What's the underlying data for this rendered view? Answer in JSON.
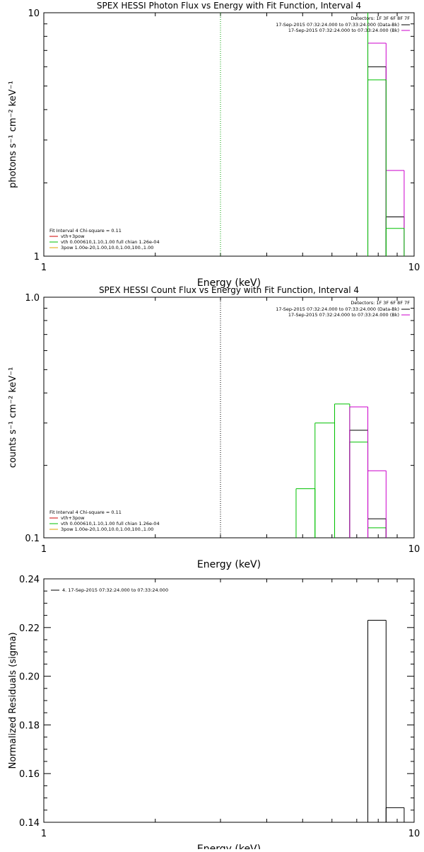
{
  "chart_data": [
    {
      "type": "step",
      "title": "SPEX HESSI Photon Flux vs Energy with Fit Function, Interval 4",
      "xlabel": "Energy (keV)",
      "ylabel": "photons s⁻¹ cm⁻² keV⁻¹",
      "xscale": "log",
      "yscale": "log",
      "xlim": [
        1,
        10
      ],
      "ylim": [
        1,
        10
      ],
      "xticklabels": [
        {
          "value": 1,
          "label": "1"
        },
        {
          "value": 10,
          "label": "10"
        }
      ],
      "yticklabels": [
        {
          "value": 1,
          "label": "1"
        },
        {
          "value": 10,
          "label": "10"
        }
      ],
      "vline": {
        "x": 3,
        "color": "#00a000",
        "style": "dotted"
      },
      "legend_left": {
        "header": "Fit Interval  4    Chi-square = 0.11",
        "items": [
          {
            "label": "vth+3pow",
            "color": "#cc0000"
          },
          {
            "label": "vth 0.000610,1.10,1.00   full chian 1.26e-04",
            "color": "#00c000"
          },
          {
            "label": "3pow 1.00e-20,1.00,10.0,1.00,100.,1.00",
            "color": "#e0a000"
          }
        ]
      },
      "legend_right": {
        "header": "Detectors: 1F 3F 6F 8F 7F",
        "items": [
          {
            "label": "17-Sep-2015 07:32:24.000 to 07:33:24.000 (Data-Bk)",
            "color": "#000000"
          },
          {
            "label": "17-Sep-2015 07:32:24.000 to 07:33:24.000 (Bk)",
            "color": "#cc00cc"
          }
        ]
      },
      "series": [
        {
          "color": "#000000",
          "bins": [
            {
              "x0": 7.5,
              "x1": 8.4,
              "y": 6.0
            },
            {
              "x0": 8.4,
              "x1": 9.4,
              "y": 1.45
            }
          ]
        },
        {
          "color": "#cc00cc",
          "bins": [
            {
              "x0": 7.5,
              "x1": 8.4,
              "y": 7.5
            },
            {
              "x0": 8.4,
              "x1": 9.4,
              "y": 2.25
            }
          ]
        },
        {
          "color": "#00c000",
          "bins": [
            {
              "x0": 7.5,
              "x1": 8.4,
              "y": 5.3
            },
            {
              "x0": 8.4,
              "x1": 9.4,
              "y": 1.3
            }
          ],
          "left_rise_to": 10
        }
      ]
    },
    {
      "type": "step",
      "title": "SPEX HESSI Count Flux vs Energy with Fit Function, Interval 4",
      "xlabel": "Energy (keV)",
      "ylabel": "counts s⁻¹ cm⁻² keV⁻¹",
      "xscale": "log",
      "yscale": "log",
      "xlim": [
        1,
        10
      ],
      "ylim": [
        0.1,
        1.0
      ],
      "xticklabels": [
        {
          "value": 1,
          "label": "1"
        },
        {
          "value": 10,
          "label": "10"
        }
      ],
      "yticklabels": [
        {
          "value": 0.1,
          "label": "0.1"
        },
        {
          "value": 1.0,
          "label": "1.0"
        }
      ],
      "vline": {
        "x": 3,
        "color": "#000000",
        "style": "dotted"
      },
      "legend_left": {
        "header": "Fit Interval  4    Chi-square = 0.11",
        "items": [
          {
            "label": "vth+3pow",
            "color": "#cc0000"
          },
          {
            "label": "vth 0.000610,1.10,1.00   full chian 1.26e-04",
            "color": "#00c000"
          },
          {
            "label": "3pow 1.00e-20,1.00,10.0,1.00,100.,1.00",
            "color": "#e0a000"
          }
        ]
      },
      "legend_right": {
        "header": "Detectors: 1F 3F 6F 8F 7F",
        "items": [
          {
            "label": "17-Sep-2015 07:32:24.000 to 07:33:24.000 (Data-Bk)",
            "color": "#000000"
          },
          {
            "label": "17-Sep-2015 07:32:24.000 to 07:33:24.000 (Bk)",
            "color": "#cc00cc"
          }
        ]
      },
      "series": [
        {
          "color": "#00c000",
          "bins": [
            {
              "x0": 4.8,
              "x1": 5.4,
              "y": 0.16
            },
            {
              "x0": 5.4,
              "x1": 6.1,
              "y": 0.3
            },
            {
              "x0": 6.1,
              "x1": 6.7,
              "y": 0.36
            },
            {
              "x0": 6.7,
              "x1": 7.5,
              "y": 0.25
            },
            {
              "x0": 7.5,
              "x1": 8.4,
              "y": 0.11
            }
          ]
        },
        {
          "color": "#000000",
          "bins": [
            {
              "x0": 6.7,
              "x1": 7.5,
              "y": 0.28
            },
            {
              "x0": 7.5,
              "x1": 8.4,
              "y": 0.12
            }
          ]
        },
        {
          "color": "#cc00cc",
          "bins": [
            {
              "x0": 6.7,
              "x1": 7.5,
              "y": 0.35
            },
            {
              "x0": 7.5,
              "x1": 8.4,
              "y": 0.19
            }
          ]
        }
      ]
    },
    {
      "type": "step",
      "title": "",
      "xlabel": "Energy (keV)",
      "ylabel": "Normalized Residuals (sigma)",
      "xscale": "log",
      "yscale": "linear",
      "xlim": [
        1,
        10
      ],
      "ylim": [
        0.14,
        0.24
      ],
      "xticklabels": [
        {
          "value": 1,
          "label": "1"
        },
        {
          "value": 10,
          "label": "10"
        }
      ],
      "yticklabels": [
        {
          "value": 0.14,
          "label": "0.14"
        },
        {
          "value": 0.16,
          "label": "0.16"
        },
        {
          "value": 0.18,
          "label": "0.18"
        },
        {
          "value": 0.2,
          "label": "0.20"
        },
        {
          "value": 0.22,
          "label": "0.22"
        },
        {
          "value": 0.24,
          "label": "0.24"
        }
      ],
      "legend_left_top": {
        "items": [
          {
            "label": "4. 17-Sep-2015 07:32:24.000 to 07:33:24.000",
            "color": "#000000"
          }
        ]
      },
      "series": [
        {
          "color": "#000000",
          "bins": [
            {
              "x0": 7.5,
              "x1": 8.4,
              "y": 0.223
            },
            {
              "x0": 8.4,
              "x1": 9.4,
              "y": 0.146
            }
          ]
        }
      ]
    }
  ]
}
